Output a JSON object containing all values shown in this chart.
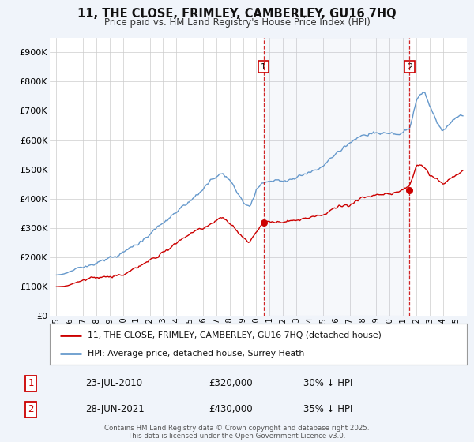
{
  "title": "11, THE CLOSE, FRIMLEY, CAMBERLEY, GU16 7HQ",
  "subtitle": "Price paid vs. HM Land Registry's House Price Index (HPI)",
  "legend_line1": "11, THE CLOSE, FRIMLEY, CAMBERLEY, GU16 7HQ (detached house)",
  "legend_line2": "HPI: Average price, detached house, Surrey Heath",
  "annotation_text": "Contains HM Land Registry data © Crown copyright and database right 2025.\nThis data is licensed under the Open Government Licence v3.0.",
  "sale1_label": "1",
  "sale1_date": "23-JUL-2010",
  "sale1_price": "£320,000",
  "sale1_hpi": "30% ↓ HPI",
  "sale2_label": "2",
  "sale2_date": "28-JUN-2021",
  "sale2_price": "£430,000",
  "sale2_hpi": "35% ↓ HPI",
  "red_color": "#cc0000",
  "blue_color": "#6699cc",
  "background_color": "#f0f4fa",
  "plot_bg_color": "#ffffff",
  "sale1_x": 2010.55,
  "sale1_y": 320000,
  "sale2_x": 2021.49,
  "sale2_y": 430000,
  "ylim": [
    0,
    950000
  ],
  "xlim": [
    1994.5,
    2025.8
  ],
  "hpi_waypoints_x": [
    1995,
    1995.5,
    1996,
    1997,
    1998,
    1999,
    2000,
    2001,
    2002,
    2003,
    2004,
    2005,
    2006,
    2007,
    2007.5,
    2008,
    2008.5,
    2009,
    2009.5,
    2010,
    2010.5,
    2011,
    2012,
    2013,
    2014,
    2015,
    2016,
    2017,
    2018,
    2019,
    2020,
    2020.5,
    2021.0,
    2021.5,
    2022.0,
    2022.3,
    2022.7,
    2023.0,
    2023.5,
    2024.0,
    2024.5,
    2025.0,
    2025.5
  ],
  "hpi_waypoints_y": [
    140000,
    142000,
    148000,
    158000,
    168000,
    183000,
    200000,
    230000,
    265000,
    300000,
    330000,
    360000,
    390000,
    440000,
    465000,
    445000,
    415000,
    370000,
    355000,
    420000,
    450000,
    450000,
    455000,
    470000,
    495000,
    520000,
    560000,
    590000,
    620000,
    625000,
    625000,
    635000,
    645000,
    670000,
    760000,
    780000,
    775000,
    740000,
    700000,
    660000,
    680000,
    695000,
    700000
  ],
  "prop_waypoints_x": [
    1995,
    1995.5,
    1996,
    1997,
    1998,
    1999,
    2000,
    2001,
    2002,
    2003,
    2004,
    2005,
    2006,
    2007,
    2007.5,
    2008,
    2008.5,
    2009,
    2009.5,
    2010,
    2010.5,
    2011,
    2012,
    2013,
    2014,
    2015,
    2016,
    2017,
    2018,
    2019,
    2020,
    2020.5,
    2021.0,
    2021.5,
    2022.0,
    2022.5,
    2023.0,
    2023.5,
    2024.0,
    2024.5,
    2025.0,
    2025.5
  ],
  "prop_waypoints_y": [
    100000,
    101000,
    104000,
    112000,
    120000,
    128000,
    137000,
    155000,
    175000,
    205000,
    230000,
    255000,
    275000,
    300000,
    315000,
    295000,
    275000,
    255000,
    248000,
    280000,
    310000,
    310000,
    310000,
    320000,
    333000,
    348000,
    372000,
    390000,
    415000,
    418000,
    418000,
    422000,
    430000,
    445000,
    505000,
    500000,
    470000,
    455000,
    440000,
    455000,
    468000,
    475000
  ]
}
